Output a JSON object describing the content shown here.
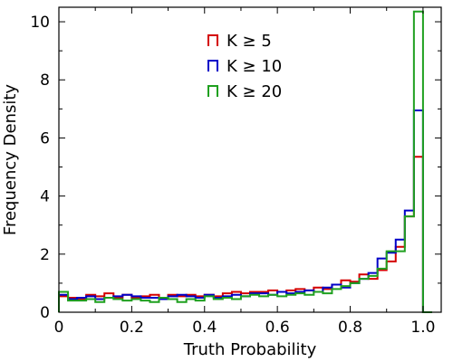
{
  "chart_data": {
    "type": "histogram",
    "xlabel": "Truth Probability",
    "ylabel": "Frequency Density",
    "xlim": [
      0,
      1.05
    ],
    "ylim": [
      0,
      10.5
    ],
    "xticks": [
      "0",
      "0.2",
      "0.4",
      "0.6",
      "0.8",
      "1.0"
    ],
    "yticks": [
      "0",
      "2",
      "4",
      "6",
      "8",
      "10"
    ],
    "legend_position": "top-center",
    "bin_edges": [
      0,
      0.025,
      0.05,
      0.075,
      0.1,
      0.125,
      0.15,
      0.175,
      0.2,
      0.225,
      0.25,
      0.275,
      0.3,
      0.325,
      0.35,
      0.375,
      0.4,
      0.425,
      0.45,
      0.475,
      0.5,
      0.525,
      0.55,
      0.575,
      0.6,
      0.625,
      0.65,
      0.675,
      0.7,
      0.725,
      0.75,
      0.775,
      0.8,
      0.825,
      0.85,
      0.875,
      0.9,
      0.925,
      0.95,
      0.975,
      1.0,
      1.025
    ],
    "series": [
      {
        "name": "K ≥ 5",
        "color": "#d40000",
        "values": [
          0.55,
          0.5,
          0.45,
          0.6,
          0.55,
          0.65,
          0.5,
          0.6,
          0.5,
          0.55,
          0.6,
          0.5,
          0.6,
          0.55,
          0.6,
          0.55,
          0.6,
          0.55,
          0.65,
          0.7,
          0.65,
          0.7,
          0.7,
          0.75,
          0.7,
          0.75,
          0.8,
          0.75,
          0.85,
          0.8,
          0.95,
          1.1,
          1.05,
          1.3,
          1.15,
          1.45,
          1.75,
          2.25,
          3.3,
          5.35,
          0.0
        ]
      },
      {
        "name": "K ≥ 10",
        "color": "#0000c8",
        "values": [
          0.6,
          0.45,
          0.5,
          0.55,
          0.45,
          0.5,
          0.55,
          0.6,
          0.55,
          0.5,
          0.5,
          0.45,
          0.55,
          0.6,
          0.55,
          0.5,
          0.6,
          0.5,
          0.55,
          0.6,
          0.55,
          0.65,
          0.65,
          0.6,
          0.7,
          0.65,
          0.7,
          0.75,
          0.7,
          0.85,
          0.95,
          0.85,
          1.0,
          1.15,
          1.35,
          1.85,
          2.05,
          2.5,
          3.5,
          6.95,
          0.0
        ]
      },
      {
        "name": "K ≥ 20",
        "color": "#1fa01f",
        "values": [
          0.7,
          0.4,
          0.4,
          0.45,
          0.35,
          0.5,
          0.45,
          0.4,
          0.45,
          0.4,
          0.35,
          0.5,
          0.45,
          0.35,
          0.45,
          0.4,
          0.55,
          0.45,
          0.5,
          0.45,
          0.55,
          0.6,
          0.55,
          0.6,
          0.55,
          0.6,
          0.65,
          0.6,
          0.7,
          0.65,
          0.8,
          0.9,
          1.0,
          1.15,
          1.25,
          1.5,
          2.1,
          2.1,
          3.3,
          10.35,
          0.0
        ]
      }
    ]
  }
}
